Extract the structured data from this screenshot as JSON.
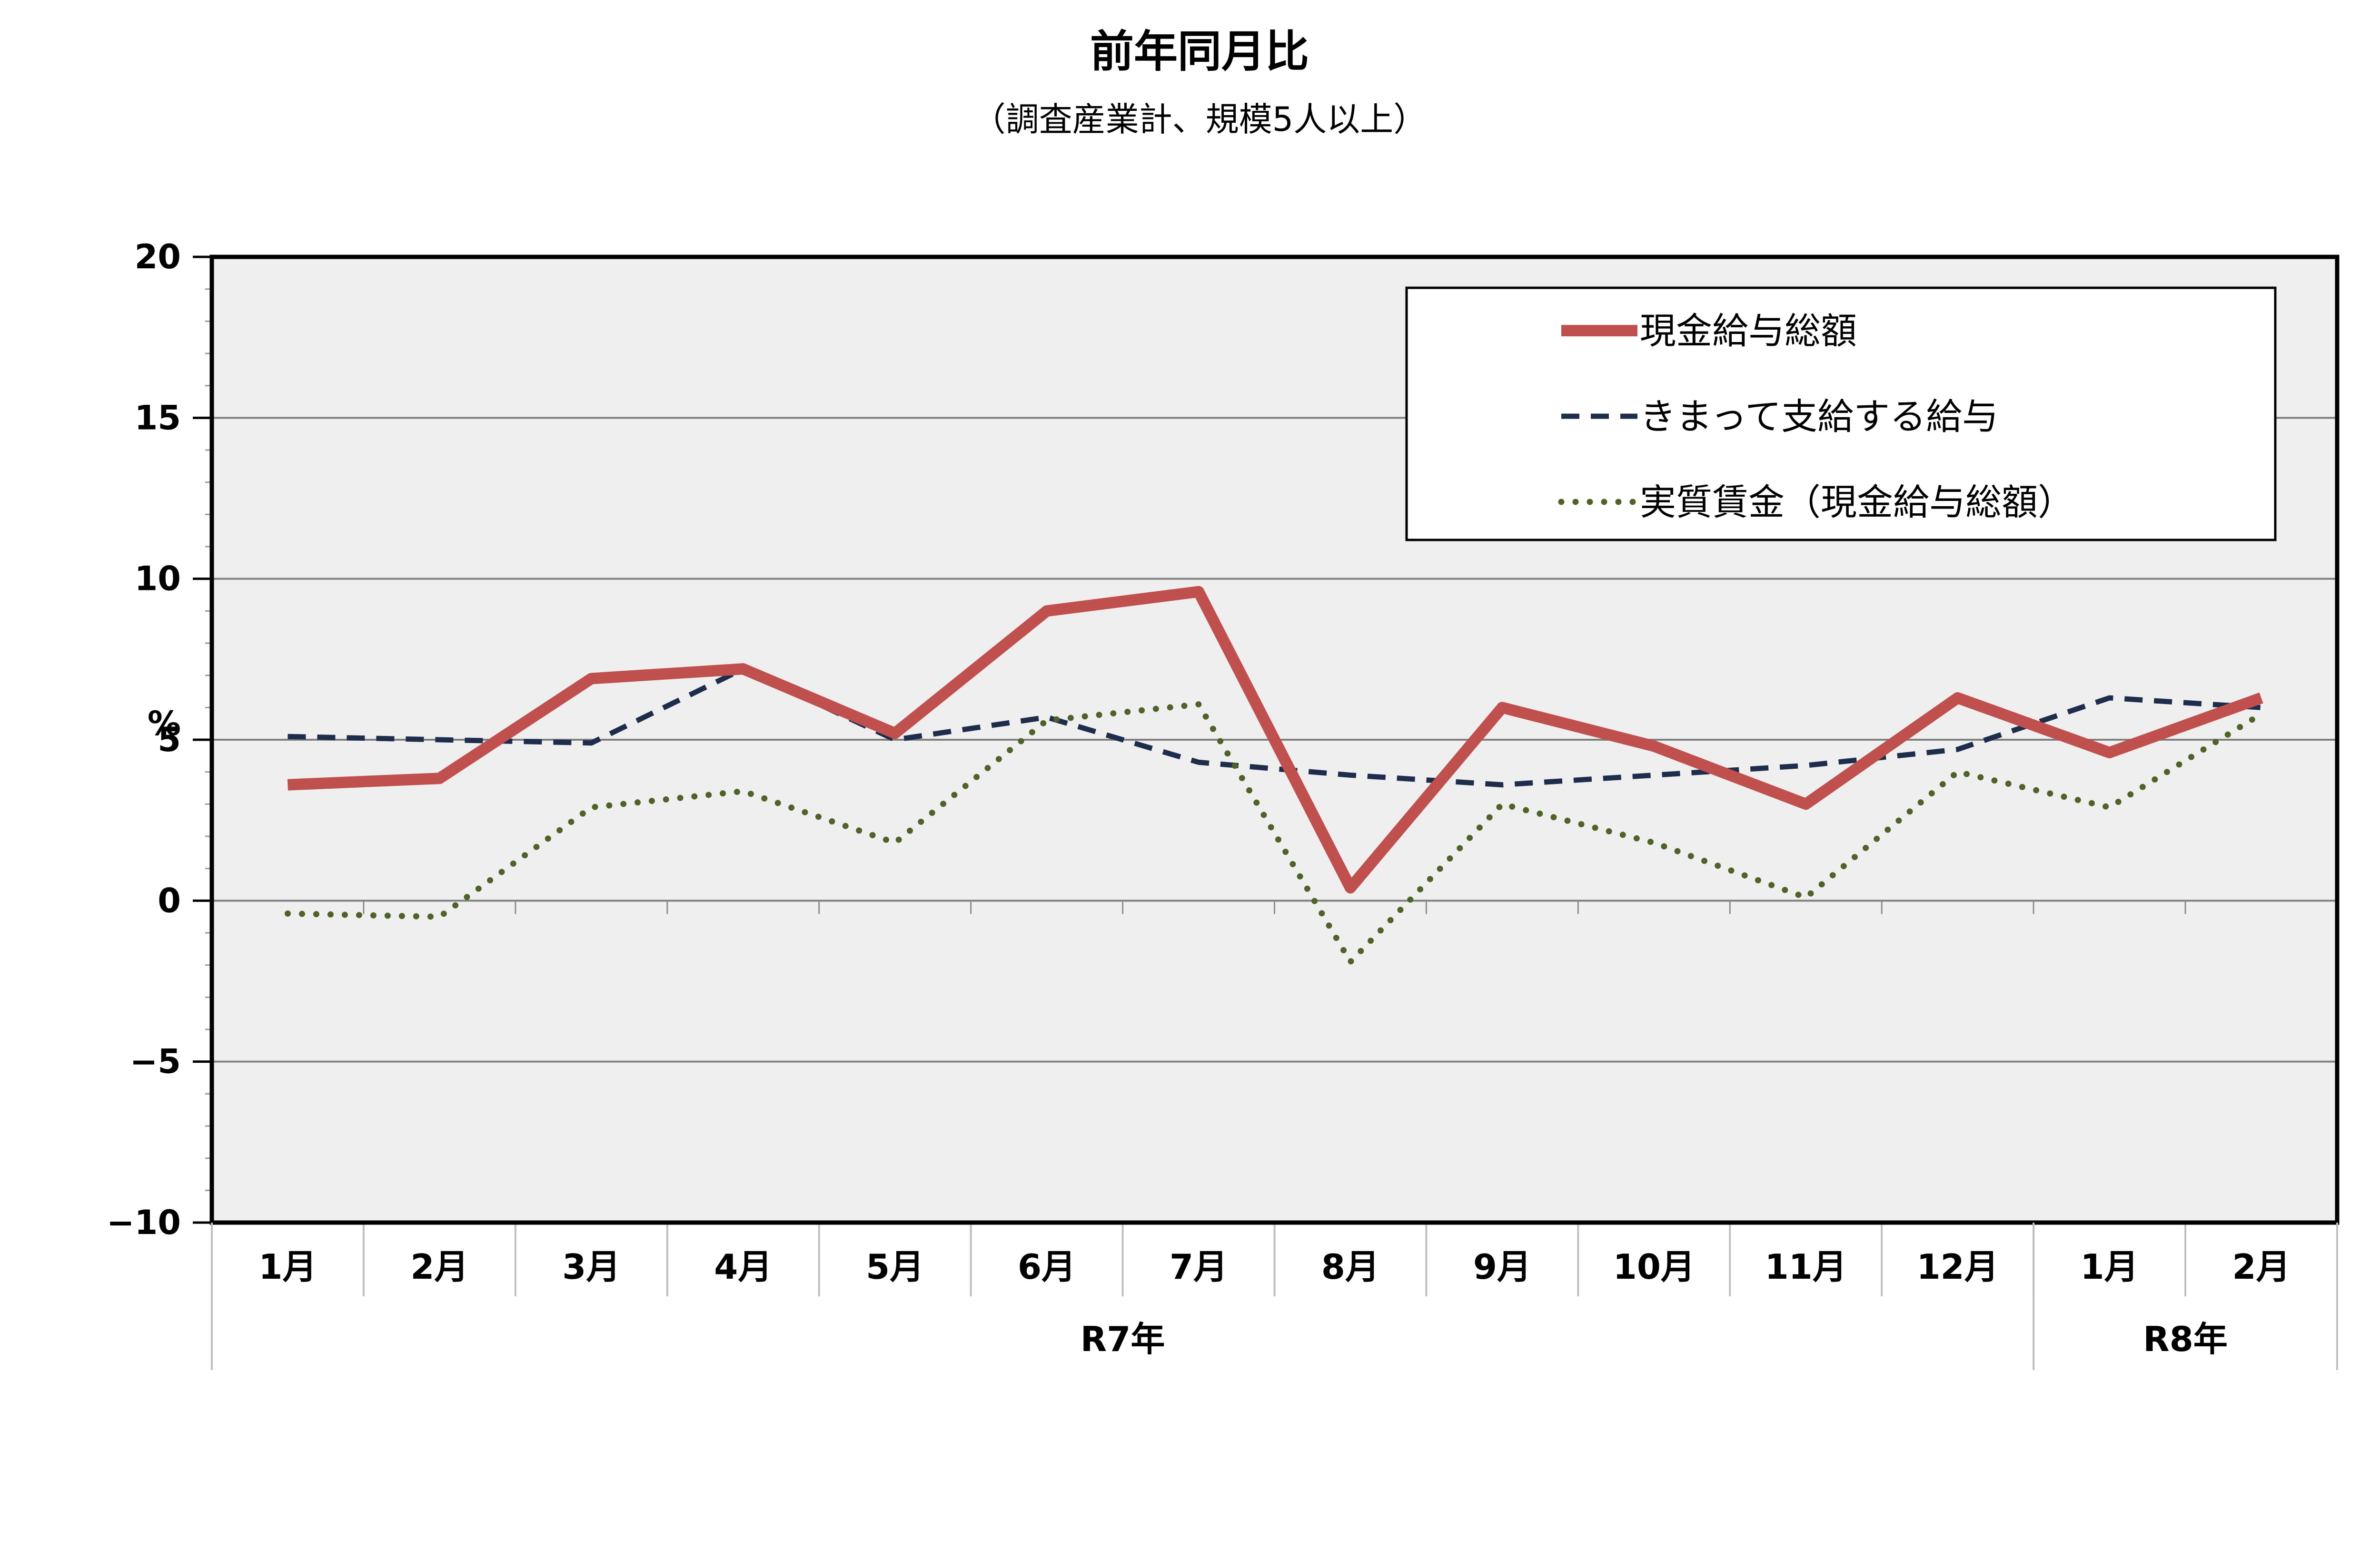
{
  "chart_data": {
    "type": "line",
    "title": "前年同月比",
    "subtitle": "（調査産業計、規模5人以上）",
    "ylabel": "%",
    "ylim": [
      -10,
      20
    ],
    "yticks": [
      20,
      15,
      10,
      5,
      0,
      -5,
      -10
    ],
    "ytick_labels": [
      "20",
      "15",
      "10",
      "5",
      "0",
      "−5",
      "−10"
    ],
    "grid": true,
    "legend_position": "top-right",
    "categories": [
      "1月",
      "2月",
      "3月",
      "4月",
      "5月",
      "6月",
      "7月",
      "8月",
      "9月",
      "10月",
      "11月",
      "12月",
      "1月",
      "2月"
    ],
    "year_groups": [
      {
        "label": "R7年",
        "start": 0,
        "end": 11
      },
      {
        "label": "R8年",
        "start": 12,
        "end": 13
      }
    ],
    "series": [
      {
        "name": "現金給与総額",
        "color": "#c0504d",
        "style": "solid",
        "values": [
          3.6,
          3.8,
          6.9,
          7.2,
          5.2,
          9.0,
          9.6,
          0.4,
          6.0,
          4.8,
          3.0,
          6.3,
          4.6,
          6.3
        ]
      },
      {
        "name": "きまって支給する給与",
        "color": "#1f2d4d",
        "style": "dashed",
        "values": [
          5.1,
          5.0,
          4.9,
          7.2,
          5.0,
          5.7,
          4.3,
          3.9,
          3.6,
          3.9,
          4.2,
          4.7,
          6.3,
          6.0
        ]
      },
      {
        "name": "実質賃金（現金給与総額）",
        "color": "#4f6228",
        "style": "dotted",
        "values": [
          -0.4,
          -0.5,
          2.9,
          3.4,
          1.8,
          5.6,
          6.1,
          -1.9,
          3.0,
          1.8,
          0.1,
          4.0,
          2.9,
          5.8
        ]
      }
    ],
    "colors": {
      "plot_background": "#efefef",
      "grid": "#7f7f7f",
      "axis": "#000000"
    }
  }
}
